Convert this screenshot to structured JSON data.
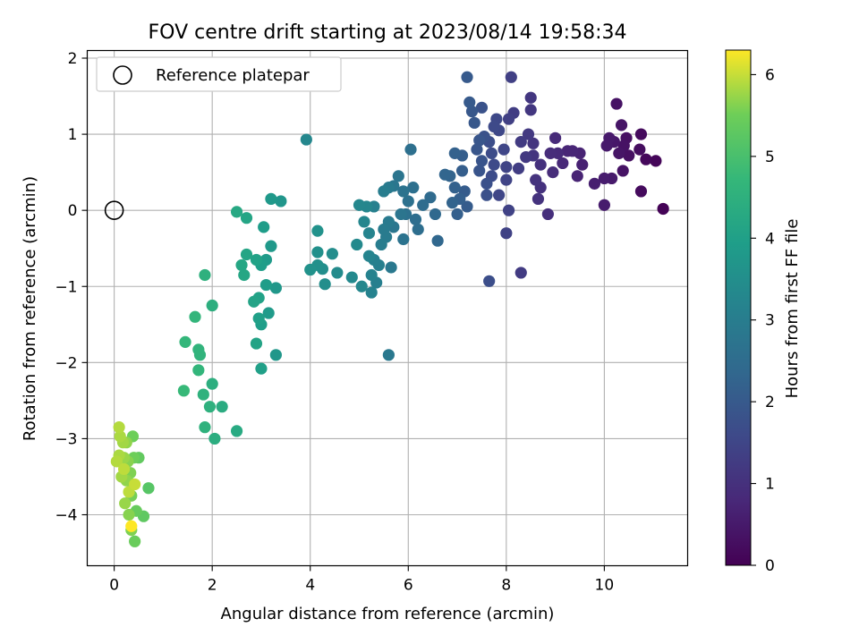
{
  "chart_data": {
    "type": "scatter",
    "title": "FOV centre drift starting at 2023/08/14 19:58:34",
    "xlabel": "Angular distance from reference (arcmin)",
    "ylabel": "Rotation from reference (arcmin)",
    "xlim": [
      -0.55,
      11.7
    ],
    "ylim": [
      -4.67,
      2.1
    ],
    "xticks": [
      0,
      2,
      4,
      6,
      8,
      10
    ],
    "yticks": [
      -4,
      -3,
      -2,
      -1,
      0,
      1,
      2
    ],
    "grid": true,
    "legend": {
      "position": "top-left",
      "entries": [
        "Reference platepar"
      ]
    },
    "reference_point": {
      "x": 0,
      "y": 0,
      "label": "Reference platepar"
    },
    "colorbar": {
      "label": "Hours from first FF file",
      "colormap": "viridis",
      "range": [
        0,
        6.3
      ],
      "ticks": [
        0,
        1,
        2,
        3,
        4,
        5,
        6
      ]
    },
    "series": [
      {
        "points": [
          {
            "x": 11.2,
            "y": 0.02,
            "c": 0.05
          },
          {
            "x": 11.05,
            "y": 0.65,
            "c": 0.1
          },
          {
            "x": 10.85,
            "y": 0.67,
            "c": 0.15
          },
          {
            "x": 10.75,
            "y": 0.25,
            "c": 0.2
          },
          {
            "x": 10.75,
            "y": 1.0,
            "c": 0.2
          },
          {
            "x": 10.72,
            "y": 0.8,
            "c": 0.25
          },
          {
            "x": 10.5,
            "y": 0.72,
            "c": 0.3
          },
          {
            "x": 10.45,
            "y": 0.95,
            "c": 0.3
          },
          {
            "x": 10.4,
            "y": 0.85,
            "c": 0.35
          },
          {
            "x": 10.38,
            "y": 0.52,
            "c": 0.35
          },
          {
            "x": 10.35,
            "y": 1.12,
            "c": 0.4
          },
          {
            "x": 10.3,
            "y": 0.75,
            "c": 0.4
          },
          {
            "x": 10.25,
            "y": 1.4,
            "c": 0.35
          },
          {
            "x": 10.2,
            "y": 0.9,
            "c": 0.45
          },
          {
            "x": 10.15,
            "y": 0.42,
            "c": 0.5
          },
          {
            "x": 10.1,
            "y": 0.95,
            "c": 0.5
          },
          {
            "x": 10.05,
            "y": 0.85,
            "c": 0.5
          },
          {
            "x": 10.0,
            "y": 0.07,
            "c": 0.55
          },
          {
            "x": 10.0,
            "y": 0.42,
            "c": 0.55
          },
          {
            "x": 9.8,
            "y": 0.35,
            "c": 0.6
          },
          {
            "x": 9.55,
            "y": 0.6,
            "c": 0.65
          },
          {
            "x": 9.5,
            "y": 0.75,
            "c": 0.7
          },
          {
            "x": 9.45,
            "y": 0.45,
            "c": 0.7
          },
          {
            "x": 9.35,
            "y": 0.78,
            "c": 0.75
          },
          {
            "x": 9.25,
            "y": 0.78,
            "c": 0.75
          },
          {
            "x": 9.15,
            "y": 0.62,
            "c": 0.8
          },
          {
            "x": 9.05,
            "y": 0.75,
            "c": 0.85
          },
          {
            "x": 9.0,
            "y": 0.95,
            "c": 0.85
          },
          {
            "x": 8.9,
            "y": 0.75,
            "c": 0.9
          },
          {
            "x": 8.95,
            "y": 0.5,
            "c": 0.9
          },
          {
            "x": 8.85,
            "y": -0.05,
            "c": 0.95
          },
          {
            "x": 8.7,
            "y": 0.3,
            "c": 1.0
          },
          {
            "x": 8.7,
            "y": 0.6,
            "c": 1.0
          },
          {
            "x": 8.65,
            "y": 0.15,
            "c": 1.05
          },
          {
            "x": 8.6,
            "y": 0.4,
            "c": 1.05
          },
          {
            "x": 8.55,
            "y": 0.72,
            "c": 1.1
          },
          {
            "x": 8.55,
            "y": 0.88,
            "c": 1.1
          },
          {
            "x": 8.5,
            "y": 1.48,
            "c": 1.15
          },
          {
            "x": 8.5,
            "y": 1.32,
            "c": 1.15
          },
          {
            "x": 8.45,
            "y": 1.0,
            "c": 1.2
          },
          {
            "x": 8.4,
            "y": 0.7,
            "c": 1.2
          },
          {
            "x": 8.3,
            "y": -0.82,
            "c": 1.25
          },
          {
            "x": 8.3,
            "y": 0.9,
            "c": 1.25
          },
          {
            "x": 8.25,
            "y": 0.55,
            "c": 1.3
          },
          {
            "x": 8.15,
            "y": 1.28,
            "c": 1.3
          },
          {
            "x": 8.1,
            "y": 1.75,
            "c": 1.35
          },
          {
            "x": 8.05,
            "y": 1.2,
            "c": 1.35
          },
          {
            "x": 8.05,
            "y": 0.0,
            "c": 1.4
          },
          {
            "x": 8.0,
            "y": -0.3,
            "c": 1.4
          },
          {
            "x": 8.0,
            "y": 0.4,
            "c": 1.45
          },
          {
            "x": 8.0,
            "y": 0.57,
            "c": 1.45
          },
          {
            "x": 7.95,
            "y": 0.8,
            "c": 1.5
          },
          {
            "x": 7.85,
            "y": 0.2,
            "c": 1.5
          },
          {
            "x": 7.85,
            "y": 1.05,
            "c": 1.55
          },
          {
            "x": 7.8,
            "y": 1.2,
            "c": 1.55
          },
          {
            "x": 7.75,
            "y": 1.1,
            "c": 1.6
          },
          {
            "x": 7.75,
            "y": 0.6,
            "c": 1.6
          },
          {
            "x": 7.7,
            "y": 0.75,
            "c": 1.65
          },
          {
            "x": 7.7,
            "y": 0.45,
            "c": 1.65
          },
          {
            "x": 7.65,
            "y": 0.9,
            "c": 1.7
          },
          {
            "x": 7.65,
            "y": -0.93,
            "c": 1.7
          },
          {
            "x": 7.6,
            "y": 0.2,
            "c": 1.75
          },
          {
            "x": 7.6,
            "y": 0.35,
            "c": 1.75
          },
          {
            "x": 7.55,
            "y": 0.97,
            "c": 1.8
          },
          {
            "x": 7.5,
            "y": 1.35,
            "c": 1.8
          },
          {
            "x": 7.5,
            "y": 0.65,
            "c": 1.85
          },
          {
            "x": 7.45,
            "y": 0.52,
            "c": 1.85
          },
          {
            "x": 7.45,
            "y": 0.92,
            "c": 1.9
          },
          {
            "x": 7.4,
            "y": 0.8,
            "c": 1.9
          },
          {
            "x": 7.35,
            "y": 1.15,
            "c": 1.95
          },
          {
            "x": 7.3,
            "y": 1.3,
            "c": 1.95
          },
          {
            "x": 7.25,
            "y": 1.42,
            "c": 2.0
          },
          {
            "x": 7.2,
            "y": 1.75,
            "c": 2.0
          },
          {
            "x": 7.2,
            "y": 0.05,
            "c": 2.05
          },
          {
            "x": 7.15,
            "y": 0.25,
            "c": 2.05
          },
          {
            "x": 7.1,
            "y": 0.52,
            "c": 2.1
          },
          {
            "x": 7.1,
            "y": 0.72,
            "c": 2.1
          },
          {
            "x": 7.05,
            "y": 0.15,
            "c": 2.15
          },
          {
            "x": 7.0,
            "y": -0.05,
            "c": 2.15
          },
          {
            "x": 6.95,
            "y": 0.3,
            "c": 2.2
          },
          {
            "x": 6.95,
            "y": 0.75,
            "c": 2.2
          },
          {
            "x": 6.9,
            "y": 0.1,
            "c": 2.25
          },
          {
            "x": 6.85,
            "y": 0.45,
            "c": 2.25
          },
          {
            "x": 6.75,
            "y": 0.47,
            "c": 2.3
          },
          {
            "x": 6.6,
            "y": -0.4,
            "c": 2.35
          },
          {
            "x": 6.55,
            "y": -0.05,
            "c": 2.4
          },
          {
            "x": 6.45,
            "y": 0.17,
            "c": 2.45
          },
          {
            "x": 6.3,
            "y": 0.07,
            "c": 2.5
          },
          {
            "x": 6.2,
            "y": -0.25,
            "c": 2.55
          },
          {
            "x": 6.15,
            "y": -0.12,
            "c": 2.55
          },
          {
            "x": 6.1,
            "y": 0.3,
            "c": 2.6
          },
          {
            "x": 6.05,
            "y": 0.8,
            "c": 2.6
          },
          {
            "x": 6.0,
            "y": 0.12,
            "c": 2.65
          },
          {
            "x": 5.95,
            "y": -0.05,
            "c": 2.65
          },
          {
            "x": 5.9,
            "y": 0.25,
            "c": 2.7
          },
          {
            "x": 5.9,
            "y": -0.38,
            "c": 2.7
          },
          {
            "x": 5.85,
            "y": -0.05,
            "c": 2.75
          },
          {
            "x": 5.8,
            "y": 0.45,
            "c": 2.75
          },
          {
            "x": 5.7,
            "y": -0.22,
            "c": 2.8
          },
          {
            "x": 5.7,
            "y": 0.32,
            "c": 2.8
          },
          {
            "x": 5.65,
            "y": -0.75,
            "c": 2.85
          },
          {
            "x": 5.6,
            "y": -1.9,
            "c": 2.85
          },
          {
            "x": 5.6,
            "y": 0.3,
            "c": 2.9
          },
          {
            "x": 5.6,
            "y": -0.15,
            "c": 2.9
          },
          {
            "x": 5.55,
            "y": -0.35,
            "c": 2.95
          },
          {
            "x": 5.5,
            "y": -0.25,
            "c": 2.95
          },
          {
            "x": 5.5,
            "y": 0.25,
            "c": 3.0
          },
          {
            "x": 5.45,
            "y": -0.45,
            "c": 3.0
          },
          {
            "x": 5.4,
            "y": -0.72,
            "c": 3.05
          },
          {
            "x": 5.35,
            "y": -0.95,
            "c": 3.05
          },
          {
            "x": 5.3,
            "y": -0.65,
            "c": 3.1
          },
          {
            "x": 5.3,
            "y": 0.05,
            "c": 3.1
          },
          {
            "x": 5.25,
            "y": -1.08,
            "c": 3.15
          },
          {
            "x": 5.25,
            "y": -0.85,
            "c": 3.15
          },
          {
            "x": 5.2,
            "y": -0.3,
            "c": 3.2
          },
          {
            "x": 5.2,
            "y": -0.6,
            "c": 3.2
          },
          {
            "x": 5.15,
            "y": 0.05,
            "c": 3.25
          },
          {
            "x": 5.1,
            "y": -0.15,
            "c": 3.25
          },
          {
            "x": 5.05,
            "y": -1.0,
            "c": 3.3
          },
          {
            "x": 5.0,
            "y": 0.07,
            "c": 3.3
          },
          {
            "x": 4.95,
            "y": -0.45,
            "c": 3.35
          },
          {
            "x": 4.85,
            "y": -0.88,
            "c": 3.35
          },
          {
            "x": 4.55,
            "y": -0.82,
            "c": 3.4
          },
          {
            "x": 4.45,
            "y": -0.57,
            "c": 3.45
          },
          {
            "x": 4.3,
            "y": -0.97,
            "c": 3.5
          },
          {
            "x": 4.25,
            "y": -0.77,
            "c": 3.5
          },
          {
            "x": 4.15,
            "y": -0.72,
            "c": 3.55
          },
          {
            "x": 4.15,
            "y": -0.55,
            "c": 3.55
          },
          {
            "x": 4.15,
            "y": -0.27,
            "c": 3.6
          },
          {
            "x": 4.0,
            "y": -0.78,
            "c": 3.6
          },
          {
            "x": 3.92,
            "y": 0.93,
            "c": 3.3
          },
          {
            "x": 3.4,
            "y": 0.12,
            "c": 3.7
          },
          {
            "x": 3.3,
            "y": -1.02,
            "c": 3.75
          },
          {
            "x": 3.3,
            "y": -1.9,
            "c": 3.75
          },
          {
            "x": 3.2,
            "y": 0.15,
            "c": 3.8
          },
          {
            "x": 3.2,
            "y": -0.47,
            "c": 3.8
          },
          {
            "x": 3.15,
            "y": -1.35,
            "c": 3.85
          },
          {
            "x": 3.1,
            "y": -0.65,
            "c": 3.85
          },
          {
            "x": 3.1,
            "y": -0.98,
            "c": 3.9
          },
          {
            "x": 3.05,
            "y": -0.22,
            "c": 3.9
          },
          {
            "x": 3.0,
            "y": -0.72,
            "c": 3.95
          },
          {
            "x": 3.0,
            "y": -1.5,
            "c": 3.95
          },
          {
            "x": 3.0,
            "y": -2.08,
            "c": 4.0
          },
          {
            "x": 2.95,
            "y": -1.42,
            "c": 4.0
          },
          {
            "x": 2.95,
            "y": -1.15,
            "c": 4.05
          },
          {
            "x": 2.9,
            "y": -0.65,
            "c": 4.05
          },
          {
            "x": 2.9,
            "y": -1.75,
            "c": 4.1
          },
          {
            "x": 2.85,
            "y": -1.2,
            "c": 4.1
          },
          {
            "x": 2.7,
            "y": -0.58,
            "c": 4.15
          },
          {
            "x": 2.7,
            "y": -0.1,
            "c": 4.15
          },
          {
            "x": 2.65,
            "y": -0.85,
            "c": 4.2
          },
          {
            "x": 2.6,
            "y": -0.72,
            "c": 4.2
          },
          {
            "x": 2.5,
            "y": -0.02,
            "c": 4.25
          },
          {
            "x": 2.5,
            "y": -2.9,
            "c": 4.3
          },
          {
            "x": 2.2,
            "y": -2.58,
            "c": 4.35
          },
          {
            "x": 2.05,
            "y": -3.0,
            "c": 4.4
          },
          {
            "x": 2.0,
            "y": -1.25,
            "c": 4.45
          },
          {
            "x": 2.0,
            "y": -2.28,
            "c": 4.45
          },
          {
            "x": 1.95,
            "y": -2.58,
            "c": 4.5
          },
          {
            "x": 1.85,
            "y": -0.85,
            "c": 4.5
          },
          {
            "x": 1.85,
            "y": -2.85,
            "c": 4.55
          },
          {
            "x": 1.82,
            "y": -2.42,
            "c": 4.55
          },
          {
            "x": 1.75,
            "y": -1.9,
            "c": 4.6
          },
          {
            "x": 1.72,
            "y": -1.83,
            "c": 4.6
          },
          {
            "x": 1.72,
            "y": -2.1,
            "c": 4.65
          },
          {
            "x": 1.65,
            "y": -1.4,
            "c": 4.65
          },
          {
            "x": 1.45,
            "y": -1.73,
            "c": 4.7
          },
          {
            "x": 1.42,
            "y": -2.37,
            "c": 4.75
          },
          {
            "x": 0.7,
            "y": -3.65,
            "c": 5.2
          },
          {
            "x": 0.6,
            "y": -4.02,
            "c": 5.3
          },
          {
            "x": 0.5,
            "y": -3.25,
            "c": 5.35
          },
          {
            "x": 0.45,
            "y": -3.95,
            "c": 5.4
          },
          {
            "x": 0.42,
            "y": -4.35,
            "c": 5.45
          },
          {
            "x": 0.4,
            "y": -3.25,
            "c": 5.5
          },
          {
            "x": 0.38,
            "y": -2.97,
            "c": 5.5
          },
          {
            "x": 0.38,
            "y": -3.6,
            "c": 5.55
          },
          {
            "x": 0.35,
            "y": -3.75,
            "c": 5.55
          },
          {
            "x": 0.35,
            "y": -4.2,
            "c": 5.6
          },
          {
            "x": 0.33,
            "y": -3.45,
            "c": 5.6
          },
          {
            "x": 0.3,
            "y": -4.0,
            "c": 5.65
          },
          {
            "x": 0.28,
            "y": -3.3,
            "c": 5.65
          },
          {
            "x": 0.25,
            "y": -3.05,
            "c": 5.7
          },
          {
            "x": 0.25,
            "y": -3.55,
            "c": 5.7
          },
          {
            "x": 0.22,
            "y": -3.85,
            "c": 5.75
          },
          {
            "x": 0.2,
            "y": -3.25,
            "c": 5.75
          },
          {
            "x": 0.18,
            "y": -3.05,
            "c": 5.8
          },
          {
            "x": 0.15,
            "y": -3.5,
            "c": 5.8
          },
          {
            "x": 0.12,
            "y": -2.97,
            "c": 5.85
          },
          {
            "x": 0.1,
            "y": -3.22,
            "c": 5.85
          },
          {
            "x": 0.1,
            "y": -2.85,
            "c": 5.9
          },
          {
            "x": 0.05,
            "y": -3.3,
            "c": 5.9
          },
          {
            "x": 0.3,
            "y": -3.7,
            "c": 5.95
          },
          {
            "x": 0.35,
            "y": -4.15,
            "c": 6.3
          },
          {
            "x": 0.42,
            "y": -3.6,
            "c": 6.0
          },
          {
            "x": 0.2,
            "y": -3.4,
            "c": 5.95
          }
        ]
      }
    ]
  }
}
